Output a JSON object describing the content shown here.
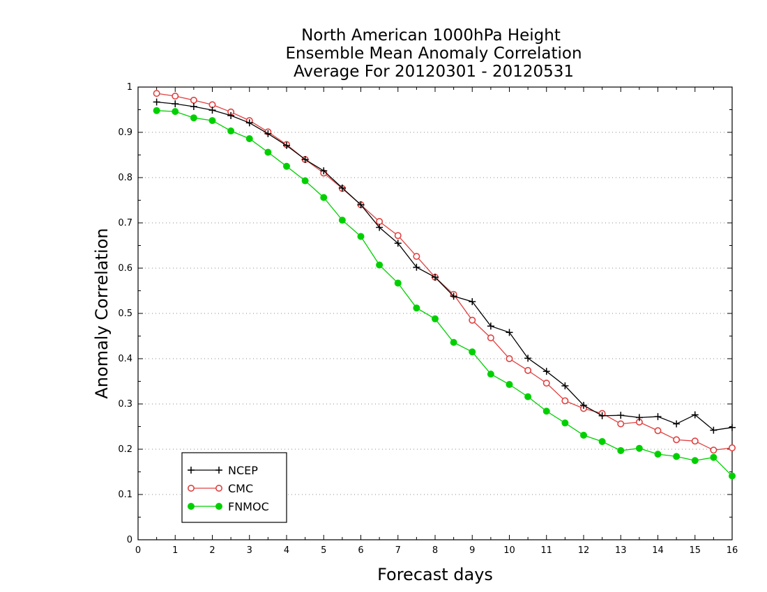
{
  "chart_data": {
    "type": "line",
    "title_lines": [
      "North American 1000hPa Height",
      "Ensemble Mean Anomaly Correlation",
      "Average For 20120301 - 20120531"
    ],
    "xlabel": "Forecast days",
    "ylabel": "Anomaly Correlation",
    "xlim": [
      0,
      16
    ],
    "ylim": [
      0,
      1
    ],
    "x_ticks": [
      0,
      1,
      2,
      3,
      4,
      5,
      6,
      7,
      8,
      9,
      10,
      11,
      12,
      13,
      14,
      15,
      16
    ],
    "x_tick_labels": [
      "0",
      "1",
      "2",
      "3",
      "4",
      "5",
      "6",
      "7",
      "8",
      "9",
      "10",
      "11",
      "12",
      "13",
      "14",
      "15",
      "16"
    ],
    "y_ticks": [
      0,
      0.1,
      0.2,
      0.3,
      0.4,
      0.5,
      0.6,
      0.7,
      0.8,
      0.9,
      1
    ],
    "y_tick_labels": [
      "0",
      "0.1",
      "0.2",
      "0.3",
      "0.4",
      "0.5",
      "0.6",
      "0.7",
      "0.8",
      "0.9",
      "1"
    ],
    "grid": "horizontal-dotted",
    "legend_position": "bottom-left",
    "x": [
      0.5,
      1,
      1.5,
      2,
      2.5,
      3,
      3.5,
      4,
      4.5,
      5,
      5.5,
      6,
      6.5,
      7,
      7.5,
      8,
      8.5,
      9,
      9.5,
      10,
      10.5,
      11,
      11.5,
      12,
      12.5,
      13,
      13.5,
      14,
      14.5,
      15,
      15.5,
      16
    ],
    "series": [
      {
        "name": "NCEP",
        "color": "#000000",
        "marker": "plus",
        "values": [
          0.967,
          0.963,
          0.957,
          0.949,
          0.937,
          0.921,
          0.897,
          0.871,
          0.84,
          0.815,
          0.777,
          0.74,
          0.69,
          0.655,
          0.602,
          0.58,
          0.538,
          0.526,
          0.472,
          0.458,
          0.401,
          0.372,
          0.34,
          0.297,
          0.274,
          0.275,
          0.27,
          0.272,
          0.256,
          0.276,
          0.242,
          0.248
        ]
      },
      {
        "name": "CMC",
        "color": "#e04040",
        "marker": "open-circle",
        "values": [
          0.986,
          0.98,
          0.971,
          0.961,
          0.945,
          0.926,
          0.901,
          0.873,
          0.84,
          0.81,
          0.776,
          0.74,
          0.703,
          0.672,
          0.626,
          0.58,
          0.542,
          0.485,
          0.446,
          0.4,
          0.374,
          0.346,
          0.307,
          0.29,
          0.279,
          0.256,
          0.26,
          0.241,
          0.221,
          0.218,
          0.198,
          0.203
        ]
      },
      {
        "name": "FNMOC",
        "color": "#00d000",
        "marker": "filled-circle",
        "values": [
          0.948,
          0.946,
          0.932,
          0.926,
          0.903,
          0.886,
          0.856,
          0.825,
          0.793,
          0.756,
          0.706,
          0.67,
          0.607,
          0.567,
          0.512,
          0.488,
          0.436,
          0.415,
          0.366,
          0.343,
          0.316,
          0.284,
          0.258,
          0.231,
          0.217,
          0.197,
          0.202,
          0.189,
          0.184,
          0.175,
          0.182,
          0.141
        ]
      }
    ]
  }
}
